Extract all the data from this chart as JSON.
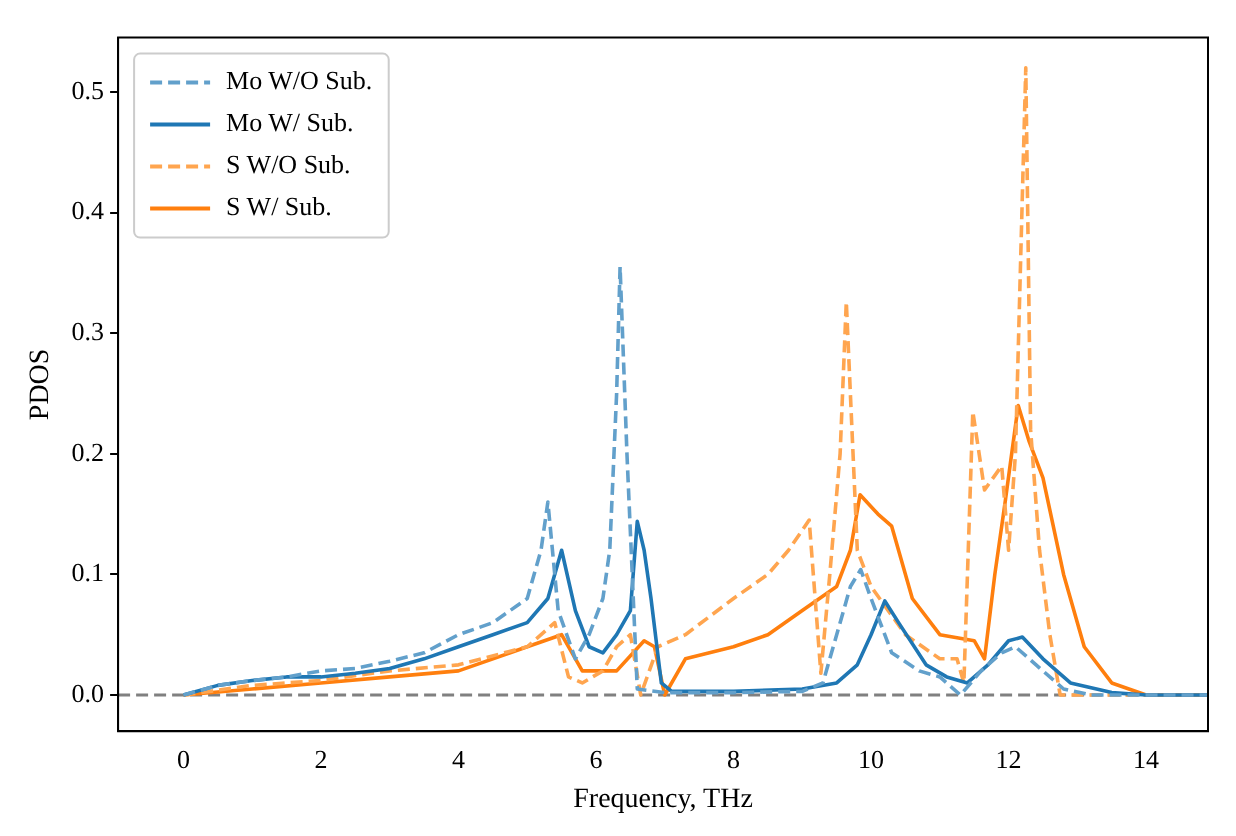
{
  "chart_data": {
    "type": "line",
    "xlabel": "Frequency, THz",
    "ylabel": "PDOS",
    "xlim": [
      -0.95,
      14.9
    ],
    "ylim": [
      -0.03,
      0.545
    ],
    "xticks": [
      0,
      2,
      4,
      6,
      8,
      10,
      12,
      14
    ],
    "yticks": [
      {
        "value": 0,
        "label": "0.0"
      },
      0.1,
      0.2,
      0.3,
      0.4,
      0.5
    ],
    "grid": false,
    "legend": "top left",
    "marker": "none",
    "ref_lines": [
      {
        "axis": "y",
        "value": 0,
        "color": "#808080",
        "line_style": "dashed"
      }
    ],
    "series": [
      {
        "name": "Mo W/O Sub.",
        "color": "#62a0cb",
        "line_style": "dashed",
        "x": [
          0,
          0.5,
          1,
          1.5,
          2,
          2.5,
          3,
          3.5,
          4,
          4.5,
          5,
          5.2,
          5.3,
          5.45,
          5.7,
          5.9,
          6.1,
          6.2,
          6.3,
          6.35,
          6.45,
          6.6,
          7,
          8,
          9,
          9.3,
          9.5,
          9.7,
          9.85,
          10,
          10.3,
          10.7,
          11,
          11.3,
          11.6,
          11.9,
          12.1,
          12.4,
          12.8,
          13.2,
          14,
          14.9
        ],
        "values": [
          0,
          0.008,
          0.012,
          0.015,
          0.02,
          0.022,
          0.028,
          0.035,
          0.05,
          0.06,
          0.08,
          0.12,
          0.16,
          0.07,
          0.03,
          0.05,
          0.08,
          0.12,
          0.25,
          0.355,
          0.2,
          0.005,
          0.002,
          0.002,
          0.003,
          0.01,
          0.05,
          0.09,
          0.104,
          0.08,
          0.035,
          0.02,
          0.015,
          0,
          0.02,
          0.035,
          0.04,
          0.025,
          0.005,
          0,
          0,
          0
        ]
      },
      {
        "name": "Mo W/ Sub.",
        "color": "#1f77b4",
        "line_style": "solid",
        "x": [
          0,
          0.5,
          1,
          1.5,
          2,
          2.5,
          3,
          3.5,
          4,
          4.5,
          5,
          5.3,
          5.5,
          5.7,
          5.9,
          6.1,
          6.3,
          6.5,
          6.6,
          6.7,
          6.8,
          6.95,
          7.1,
          8,
          9,
          9.5,
          9.8,
          10,
          10.2,
          10.4,
          10.8,
          11.1,
          11.4,
          11.7,
          12,
          12.2,
          12.5,
          12.9,
          13.5,
          14,
          14.9
        ],
        "values": [
          0,
          0.008,
          0.012,
          0.015,
          0.015,
          0.018,
          0.022,
          0.03,
          0.04,
          0.05,
          0.06,
          0.08,
          0.12,
          0.07,
          0.04,
          0.035,
          0.05,
          0.07,
          0.144,
          0.12,
          0.08,
          0.01,
          0.003,
          0.003,
          0.005,
          0.01,
          0.025,
          0.05,
          0.078,
          0.06,
          0.025,
          0.015,
          0.01,
          0.025,
          0.045,
          0.048,
          0.03,
          0.01,
          0.002,
          0,
          0
        ]
      },
      {
        "name": "S W/O Sub.",
        "color": "#ffa54f",
        "line_style": "dashed",
        "x": [
          0,
          1,
          2,
          3,
          4,
          5,
          5.4,
          5.6,
          5.8,
          6.1,
          6.3,
          6.5,
          6.65,
          6.9,
          7.3,
          8,
          8.5,
          8.8,
          9.1,
          9.27,
          9.4,
          9.55,
          9.64,
          9.8,
          10,
          10.5,
          11,
          11.25,
          11.35,
          11.48,
          11.65,
          11.9,
          12.0,
          12.1,
          12.25,
          12.32,
          12.45,
          12.6,
          12.75,
          13.5,
          14.9
        ],
        "values": [
          0,
          0.008,
          0.012,
          0.02,
          0.025,
          0.04,
          0.06,
          0.015,
          0.01,
          0.02,
          0.04,
          0.05,
          0,
          0.04,
          0.05,
          0.08,
          0.1,
          0.12,
          0.145,
          0.018,
          0.1,
          0.2,
          0.326,
          0.12,
          0.09,
          0.05,
          0.03,
          0.03,
          0.01,
          0.235,
          0.17,
          0.19,
          0.12,
          0.2,
          0.52,
          0.22,
          0.12,
          0.05,
          0,
          0,
          0
        ]
      },
      {
        "name": "S W/ Sub.",
        "color": "#ff7f0e",
        "line_style": "solid",
        "x": [
          0,
          1,
          2,
          3,
          4,
          5,
          5.5,
          5.8,
          6.3,
          6.7,
          6.85,
          7.0,
          7.3,
          8,
          8.5,
          9,
          9.5,
          9.7,
          9.84,
          10.1,
          10.3,
          10.6,
          11,
          11.5,
          11.65,
          11.8,
          11.95,
          12.14,
          12.3,
          12.5,
          12.8,
          13.1,
          13.5,
          14,
          14.9
        ],
        "values": [
          0,
          0.005,
          0.01,
          0.015,
          0.02,
          0.04,
          0.05,
          0.02,
          0.02,
          0.045,
          0.04,
          0,
          0.03,
          0.04,
          0.05,
          0.07,
          0.09,
          0.12,
          0.166,
          0.15,
          0.14,
          0.08,
          0.05,
          0.045,
          0.03,
          0.1,
          0.16,
          0.24,
          0.21,
          0.18,
          0.1,
          0.04,
          0.01,
          0,
          0
        ]
      }
    ]
  }
}
